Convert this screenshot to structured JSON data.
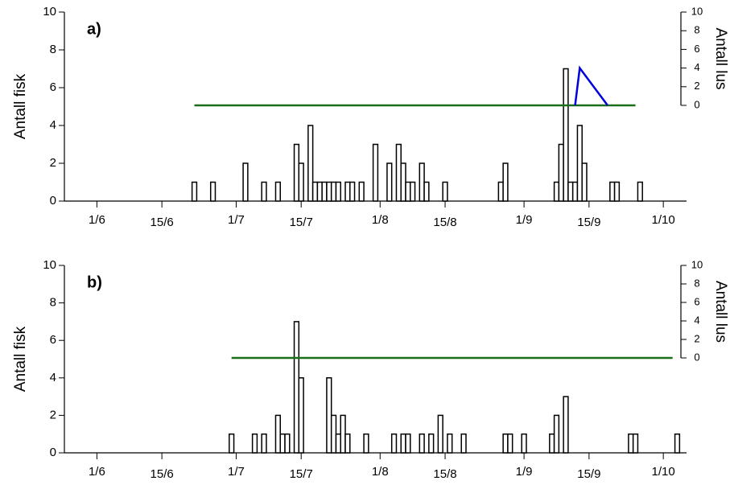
{
  "chart_data": [
    {
      "type": "bar",
      "label": "a)",
      "ylabel": "Antall fisk",
      "y2label": "Antall lus",
      "color": "#ffffff",
      "edgecolor": "#000000",
      "x": [
        173,
        177,
        184,
        188,
        191,
        195,
        196,
        198,
        199,
        200,
        201,
        202,
        203,
        204,
        206,
        207,
        209,
        212,
        215,
        217,
        218,
        219,
        220,
        222,
        223,
        227,
        239,
        240,
        251,
        252,
        253,
        254,
        255,
        256,
        257,
        263,
        264,
        269
      ],
      "values": [
        1,
        1,
        2,
        1,
        1,
        3,
        2,
        4,
        1,
        1,
        1,
        1,
        1,
        1,
        1,
        1,
        1,
        3,
        2,
        3,
        2,
        1,
        1,
        2,
        1,
        1,
        1,
        2,
        1,
        3,
        7,
        1,
        1,
        4,
        2,
        1,
        1,
        1
      ],
      "series": [
        {
          "axis": "y2",
          "color": "#1a6e1a",
          "x": [
            173,
            268
          ],
          "values": [
            0,
            0
          ]
        },
        {
          "axis": "y2",
          "color": "#0000dd",
          "x": [
            255,
            256,
            262
          ],
          "values": [
            0,
            4,
            0
          ]
        }
      ],
      "xlim": [
        145,
        279
      ],
      "xticks": [
        {
          "value": 152,
          "label": "1/6"
        },
        {
          "value": 166,
          "label": "15/6"
        },
        {
          "value": 182,
          "label": "1/7"
        },
        {
          "value": 196,
          "label": "15/7"
        },
        {
          "value": 213,
          "label": "1/8"
        },
        {
          "value": 227,
          "label": "15/8"
        },
        {
          "value": 244,
          "label": "1/9"
        },
        {
          "value": 258,
          "label": "15/9"
        },
        {
          "value": 274,
          "label": "1/10"
        }
      ],
      "ylim": [
        0,
        10
      ],
      "yticks": [
        0,
        2,
        4,
        6,
        8,
        10
      ],
      "y2lim": [
        0,
        10
      ],
      "y2ticks": [
        0,
        2,
        4,
        6,
        8,
        10
      ]
    },
    {
      "type": "bar",
      "label": "b)",
      "ylabel": "Antall fisk",
      "y2label": "Antall lus",
      "color": "#ffffff",
      "edgecolor": "#000000",
      "x": [
        181,
        186,
        188,
        191,
        192,
        193,
        195,
        196,
        202,
        203,
        204,
        205,
        206,
        210,
        216,
        218,
        219,
        222,
        224,
        226,
        228,
        231,
        240,
        241,
        244,
        250,
        251,
        253,
        267,
        268,
        277
      ],
      "values": [
        1,
        1,
        1,
        2,
        1,
        1,
        7,
        4,
        4,
        2,
        1,
        2,
        1,
        1,
        1,
        1,
        1,
        1,
        1,
        2,
        1,
        1,
        1,
        1,
        1,
        1,
        2,
        3,
        1,
        1,
        1
      ],
      "series": [
        {
          "axis": "y2",
          "color": "#1a6e1a",
          "x": [
            181,
            276
          ],
          "values": [
            0,
            0
          ]
        }
      ],
      "xlim": [
        145,
        279
      ],
      "xticks": [
        {
          "value": 152,
          "label": "1/6"
        },
        {
          "value": 166,
          "label": "15/6"
        },
        {
          "value": 182,
          "label": "1/7"
        },
        {
          "value": 196,
          "label": "15/7"
        },
        {
          "value": 213,
          "label": "1/8"
        },
        {
          "value": 227,
          "label": "15/8"
        },
        {
          "value": 244,
          "label": "1/9"
        },
        {
          "value": 258,
          "label": "15/9"
        },
        {
          "value": 274,
          "label": "1/10"
        }
      ],
      "ylim": [
        0,
        10
      ],
      "yticks": [
        0,
        2,
        4,
        6,
        8,
        10
      ],
      "y2lim": [
        0,
        10
      ],
      "y2ticks": [
        0,
        2,
        4,
        6,
        8,
        10
      ]
    }
  ]
}
